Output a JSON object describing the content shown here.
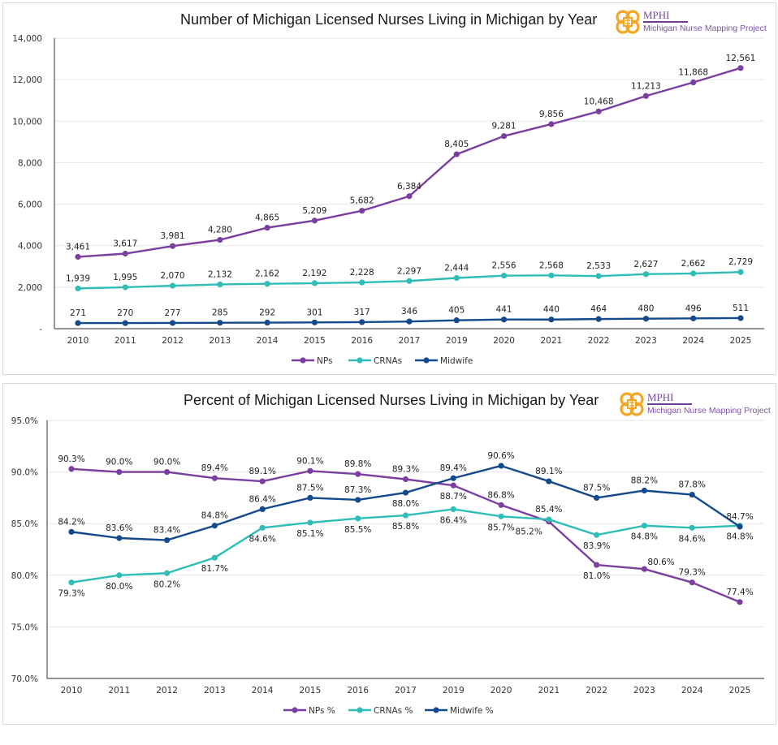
{
  "branding": {
    "org_name": "MPHI",
    "project_name": "Michigan Nurse Mapping Project",
    "logo_color": "#f5a623"
  },
  "colors": {
    "NPs": "#7b3fa0",
    "CRNAs": "#2fbdb7",
    "Midwife": "#144a8c",
    "grid": "#e6e6e6",
    "axis": "#555555"
  },
  "chart_data": [
    {
      "type": "line",
      "title": "Number of Michigan Licensed Nurses Living in Michigan by Year",
      "xlabel": "",
      "ylabel": "",
      "categories": [
        "2010",
        "2011",
        "2012",
        "2013",
        "2014",
        "2015",
        "2016",
        "2017",
        "2019",
        "2020",
        "2021",
        "2022",
        "2023",
        "2024",
        "2025"
      ],
      "ylim": [
        0,
        14000
      ],
      "yticks": [
        0,
        2000,
        4000,
        6000,
        8000,
        10000,
        12000,
        14000
      ],
      "ytick_labels": [
        "-",
        "2,000",
        "4,000",
        "6,000",
        "8,000",
        "10,000",
        "12,000",
        "14,000"
      ],
      "grid": true,
      "legend": "bottom-center",
      "series": [
        {
          "name": "NPs",
          "color_key": "NPs",
          "values": [
            3461,
            3617,
            3981,
            4280,
            4865,
            5209,
            5682,
            6384,
            8405,
            9281,
            9856,
            10468,
            11213,
            11868,
            12561
          ],
          "labels": [
            "3,461",
            "3,617",
            "3,981",
            "4,280",
            "4,865",
            "5,209",
            "5,682",
            "6,384",
            "8,405",
            "9,281",
            "9,856",
            "10,468",
            "11,213",
            "11,868",
            "12,561"
          ],
          "label_pos": "above"
        },
        {
          "name": "CRNAs",
          "color_key": "CRNAs",
          "values": [
            1939,
            1995,
            2070,
            2132,
            2162,
            2192,
            2228,
            2297,
            2444,
            2556,
            2568,
            2533,
            2627,
            2662,
            2729
          ],
          "labels": [
            "1,939",
            "1,995",
            "2,070",
            "2,132",
            "2,162",
            "2,192",
            "2,228",
            "2,297",
            "2,444",
            "2,556",
            "2,568",
            "2,533",
            "2,627",
            "2,662",
            "2,729"
          ],
          "label_pos": "above"
        },
        {
          "name": "Midwife",
          "color_key": "Midwife",
          "values": [
            271,
            270,
            277,
            285,
            292,
            301,
            317,
            346,
            405,
            441,
            440,
            464,
            480,
            496,
            511
          ],
          "labels": [
            "271",
            "270",
            "277",
            "285",
            "292",
            "301",
            "317",
            "346",
            "405",
            "441",
            "440",
            "464",
            "480",
            "496",
            "511"
          ],
          "label_pos": "above"
        }
      ]
    },
    {
      "type": "line",
      "title": "Percent of Michigan Licensed Nurses Living in Michigan by Year",
      "xlabel": "",
      "ylabel": "",
      "categories": [
        "2010",
        "2011",
        "2012",
        "2013",
        "2014",
        "2015",
        "2016",
        "2017",
        "2019",
        "2020",
        "2021",
        "2022",
        "2023",
        "2024",
        "2025"
      ],
      "ylim": [
        70,
        95
      ],
      "yticks": [
        70,
        75,
        80,
        85,
        90,
        95
      ],
      "ytick_labels": [
        "70.0%",
        "75.0%",
        "80.0%",
        "85.0%",
        "90.0%",
        "95.0%"
      ],
      "grid": true,
      "legend": "bottom-center",
      "series": [
        {
          "name": "NPs %",
          "color_key": "NPs",
          "values": [
            90.3,
            90.0,
            90.0,
            89.4,
            89.1,
            90.1,
            89.8,
            89.3,
            88.7,
            86.8,
            85.2,
            81.0,
            80.6,
            79.3,
            77.4
          ],
          "labels": [
            "90.3%",
            "90.0%",
            "90.0%",
            "89.4%",
            "89.1%",
            "90.1%",
            "89.8%",
            "89.3%",
            "88.7%",
            "86.8%",
            "85.2%",
            "81.0%",
            "80.6%",
            "79.3%",
            "77.4%"
          ],
          "label_pos": [
            "above",
            "above",
            "above",
            "above",
            "above",
            "above",
            "above",
            "above",
            "below",
            "above",
            "left",
            "below",
            "right",
            "above",
            "above"
          ]
        },
        {
          "name": "CRNAs %",
          "color_key": "CRNAs",
          "values": [
            79.3,
            80.0,
            80.2,
            81.7,
            84.6,
            85.1,
            85.5,
            85.8,
            86.4,
            85.7,
            85.4,
            83.9,
            84.8,
            84.6,
            84.8
          ],
          "labels": [
            "79.3%",
            "80.0%",
            "80.2%",
            "81.7%",
            "84.6%",
            "85.1%",
            "85.5%",
            "85.8%",
            "86.4%",
            "85.7%",
            "85.4%",
            "83.9%",
            "84.8%",
            "84.6%",
            "84.8%"
          ],
          "label_pos": [
            "below",
            "below",
            "below",
            "below",
            "below",
            "below",
            "below",
            "below",
            "below",
            "below",
            "above",
            "below",
            "below",
            "below",
            "below"
          ]
        },
        {
          "name": "Midwife %",
          "color_key": "Midwife",
          "values": [
            84.2,
            83.6,
            83.4,
            84.8,
            86.4,
            87.5,
            87.3,
            88.0,
            89.4,
            90.6,
            89.1,
            87.5,
            88.2,
            87.8,
            84.7
          ],
          "labels": [
            "84.2%",
            "83.6%",
            "83.4%",
            "84.8%",
            "86.4%",
            "87.5%",
            "87.3%",
            "88.0%",
            "89.4%",
            "90.6%",
            "89.1%",
            "87.5%",
            "88.2%",
            "87.8%",
            "84.7%"
          ],
          "label_pos": [
            "above",
            "above",
            "above",
            "above",
            "above",
            "above",
            "above",
            "below",
            "above",
            "above",
            "above",
            "above",
            "above",
            "above",
            "above"
          ]
        }
      ]
    }
  ]
}
